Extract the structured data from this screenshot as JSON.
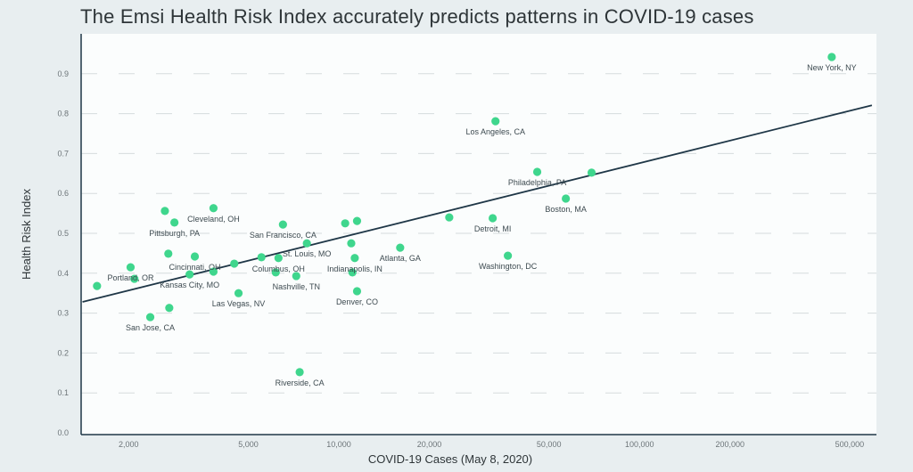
{
  "chart_data": {
    "type": "scatter",
    "title": "The Emsi Health Risk Index accurately predicts patterns in COVID-19 cases",
    "xlabel": "COVID-19 Cases (May 8, 2020)",
    "ylabel": "Health Risk Index",
    "x_scale": "log",
    "xlim": [
      1390,
      614000
    ],
    "ylim": [
      0,
      1.0
    ],
    "x_ticks": [
      {
        "value": 2000,
        "label": "2,000"
      },
      {
        "value": 5000,
        "label": "5,000"
      },
      {
        "value": 10000,
        "label": "10,000"
      },
      {
        "value": 20000,
        "label": "20,000"
      },
      {
        "value": 50000,
        "label": "50,000"
      },
      {
        "value": 100000,
        "label": "100,000"
      },
      {
        "value": 200000,
        "label": "200,000"
      },
      {
        "value": 500000,
        "label": "500,000"
      }
    ],
    "y_ticks": [
      {
        "value": 0.0,
        "label": "0.0"
      },
      {
        "value": 0.1,
        "label": "0.1"
      },
      {
        "value": 0.2,
        "label": "0.2"
      },
      {
        "value": 0.3,
        "label": "0.3"
      },
      {
        "value": 0.4,
        "label": "0.4"
      },
      {
        "value": 0.5,
        "label": "0.5"
      },
      {
        "value": 0.6,
        "label": "0.6"
      },
      {
        "value": 0.7,
        "label": "0.7"
      },
      {
        "value": 0.8,
        "label": "0.8"
      },
      {
        "value": 0.9,
        "label": "0.9"
      }
    ],
    "grid": "horizontal dashed",
    "colors": {
      "point": "#3fd68d",
      "trendline": "#1f3747",
      "background": "#e8eef0",
      "plot_background": "#fbfdfd",
      "grid": "#d6dbdd"
    },
    "trendline": {
      "x": [
        1405,
        593000
      ],
      "y": [
        0.328,
        0.821
      ]
    },
    "points": [
      {
        "x": 1570,
        "y": 0.368,
        "label": ""
      },
      {
        "x": 2030,
        "y": 0.415,
        "label": "Portland, OR"
      },
      {
        "x": 2090,
        "y": 0.386,
        "label": ""
      },
      {
        "x": 2360,
        "y": 0.29,
        "label": "San Jose, CA"
      },
      {
        "x": 2730,
        "y": 0.313,
        "label": ""
      },
      {
        "x": 2640,
        "y": 0.556,
        "label": ""
      },
      {
        "x": 2840,
        "y": 0.527,
        "label": "Pittsburgh, PA"
      },
      {
        "x": 3830,
        "y": 0.563,
        "label": "Cleveland, OH"
      },
      {
        "x": 2710,
        "y": 0.449,
        "label": ""
      },
      {
        "x": 3320,
        "y": 0.442,
        "label": "Cincinnati, OH"
      },
      {
        "x": 3190,
        "y": 0.397,
        "label": "Kansas City, MO"
      },
      {
        "x": 3830,
        "y": 0.404,
        "label": ""
      },
      {
        "x": 4490,
        "y": 0.424,
        "label": ""
      },
      {
        "x": 4640,
        "y": 0.35,
        "label": "Las Vegas, NV"
      },
      {
        "x": 5530,
        "y": 0.44,
        "label": ""
      },
      {
        "x": 6300,
        "y": 0.438,
        "label": "Columbus, OH"
      },
      {
        "x": 6170,
        "y": 0.402,
        "label": ""
      },
      {
        "x": 7220,
        "y": 0.393,
        "label": "Nashville, TN"
      },
      {
        "x": 6520,
        "y": 0.522,
        "label": "San Francisco, CA"
      },
      {
        "x": 7830,
        "y": 0.475,
        "label": "St. Louis, MO"
      },
      {
        "x": 10500,
        "y": 0.525,
        "label": ""
      },
      {
        "x": 11500,
        "y": 0.531,
        "label": ""
      },
      {
        "x": 11000,
        "y": 0.475,
        "label": ""
      },
      {
        "x": 11300,
        "y": 0.438,
        "label": "Indianapolis, IN"
      },
      {
        "x": 11100,
        "y": 0.402,
        "label": ""
      },
      {
        "x": 11500,
        "y": 0.355,
        "label": "Denver, CO"
      },
      {
        "x": 16000,
        "y": 0.464,
        "label": "Atlanta, GA"
      },
      {
        "x": 7410,
        "y": 0.152,
        "label": "Riverside, CA"
      },
      {
        "x": 23300,
        "y": 0.54,
        "label": ""
      },
      {
        "x": 32500,
        "y": 0.538,
        "label": "Detroit, MI"
      },
      {
        "x": 33200,
        "y": 0.781,
        "label": "Los Angeles, CA"
      },
      {
        "x": 36500,
        "y": 0.444,
        "label": "Washington, DC"
      },
      {
        "x": 45700,
        "y": 0.654,
        "label": "Philadelphia, PA"
      },
      {
        "x": 69300,
        "y": 0.652,
        "label": ""
      },
      {
        "x": 56900,
        "y": 0.587,
        "label": "Boston, MA"
      },
      {
        "x": 436000,
        "y": 0.942,
        "label": "New York, NY"
      }
    ]
  }
}
